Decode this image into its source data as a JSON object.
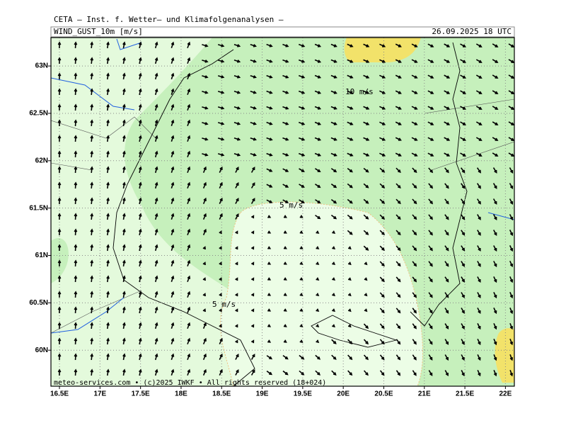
{
  "header": {
    "title": "CETA — Inst. f. Wetter— und Klimafolgenanalysen —",
    "field": "WIND_GUST_10m [m/s]",
    "valid_time": "26.09.2025 18 UTC"
  },
  "map": {
    "lonlim": [
      16.395,
      22.11
    ],
    "latlim": [
      59.62,
      63.3
    ],
    "lon_ticks": [
      {
        "value": 16.5,
        "label": "16.5E"
      },
      {
        "value": 17,
        "label": "17E"
      },
      {
        "value": 17.5,
        "label": "17.5E"
      },
      {
        "value": 18,
        "label": "18E"
      },
      {
        "value": 18.5,
        "label": "18.5E"
      },
      {
        "value": 19,
        "label": "19E"
      },
      {
        "value": 19.5,
        "label": "19.5E"
      },
      {
        "value": 20,
        "label": "20E"
      },
      {
        "value": 20.5,
        "label": "20.5E"
      },
      {
        "value": 21,
        "label": "21E"
      },
      {
        "value": 21.5,
        "label": "21.5E"
      },
      {
        "value": 22,
        "label": "22E"
      }
    ],
    "lat_ticks": [
      {
        "value": 60,
        "label": "60N"
      },
      {
        "value": 60.5,
        "label": "60.5N"
      },
      {
        "value": 61,
        "label": "61N"
      },
      {
        "value": 61.5,
        "label": "61.5N"
      },
      {
        "value": 62,
        "label": "62N"
      },
      {
        "value": 62.5,
        "label": "62.5N"
      },
      {
        "value": 63,
        "label": "63N"
      }
    ],
    "contour_labels": [
      "10 m/s",
      "5 m/s",
      "5 m/s"
    ],
    "grid": true
  },
  "footer": "meteo-services.com • (c)2025 IWKF • All rights reserved (18+024)"
}
